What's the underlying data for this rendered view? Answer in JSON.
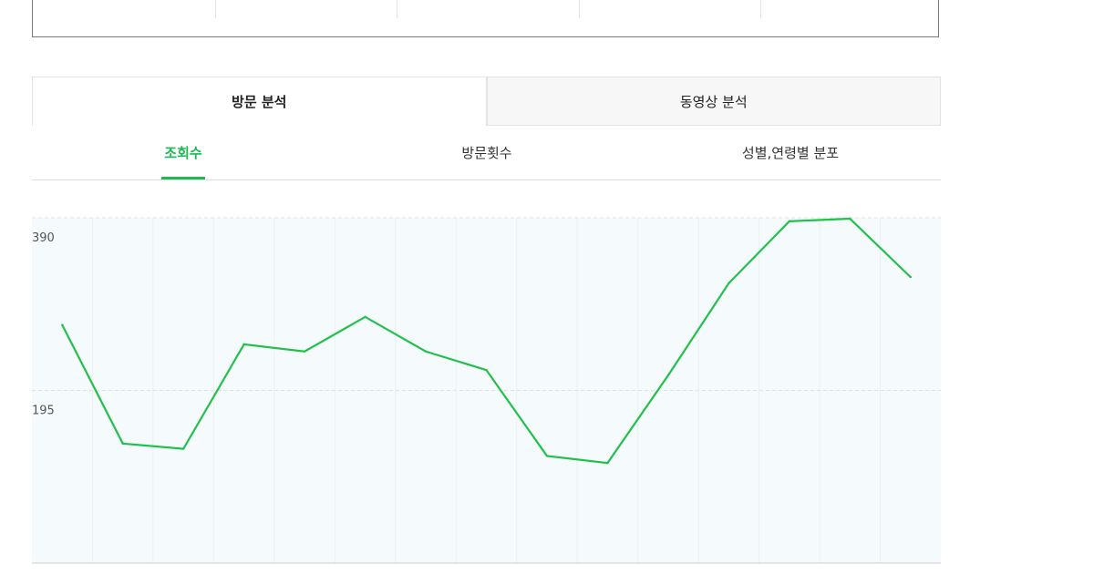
{
  "tabs": [
    {
      "label": "방문 분석",
      "active": true
    },
    {
      "label": "동영상 분석",
      "active": false
    }
  ],
  "subtabs": [
    {
      "label": "조회수",
      "active": true
    },
    {
      "label": "방문횟수",
      "active": false
    },
    {
      "label": "성별,연령별 분포",
      "active": false
    }
  ],
  "colors": {
    "accent": "#1db954",
    "line": "#22c04a",
    "plot_bg": "#f5fbfd"
  },
  "chart_data": {
    "type": "line",
    "title": "",
    "xlabel": "",
    "ylabel": "",
    "ylim": [
      0,
      390
    ],
    "yticks": [
      {
        "value": 390,
        "label": "390"
      },
      {
        "value": 195,
        "label": "195"
      }
    ],
    "grid": true,
    "x": [
      1,
      2,
      3,
      4,
      5,
      6,
      7,
      8,
      9,
      10,
      11,
      12,
      13,
      14,
      15
    ],
    "values": [
      269,
      135,
      129,
      247,
      239,
      278,
      239,
      218,
      121,
      113,
      212,
      316,
      386,
      389,
      323
    ]
  }
}
